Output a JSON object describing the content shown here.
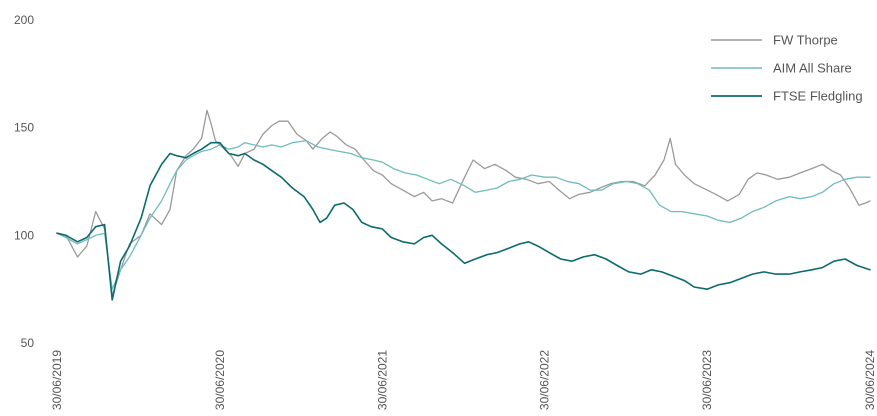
{
  "chart_data": {
    "type": "line",
    "title": "",
    "xlabel": "",
    "ylabel": "",
    "ylim": [
      50,
      200
    ],
    "yticks": [
      "50",
      "100",
      "150",
      "200"
    ],
    "xlim": [
      "30/06/2019",
      "30/06/2024"
    ],
    "xticks": [
      "30/06/2019",
      "30/06/2020",
      "30/06/2021",
      "30/06/2022",
      "30/06/2023",
      "30/06/2024"
    ],
    "grid": false,
    "legend_position": "top-right",
    "series": [
      {
        "name": "FW Thorpe",
        "color": "#9a9a9a",
        "stroke_width": 1.3,
        "points": [
          [
            "2019-06-30",
            101
          ],
          [
            "2019-07-20",
            100
          ],
          [
            "2019-08-15",
            90
          ],
          [
            "2019-09-05",
            95
          ],
          [
            "2019-09-25",
            111
          ],
          [
            "2019-10-15",
            103
          ],
          [
            "2019-11-01",
            72
          ],
          [
            "2019-11-20",
            84
          ],
          [
            "2019-12-10",
            96
          ],
          [
            "2020-01-05",
            100
          ],
          [
            "2020-01-25",
            110
          ],
          [
            "2020-02-20",
            105
          ],
          [
            "2020-03-10",
            112
          ],
          [
            "2020-03-25",
            130
          ],
          [
            "2020-04-15",
            137
          ],
          [
            "2020-05-01",
            140
          ],
          [
            "2020-05-20",
            145
          ],
          [
            "2020-06-01",
            158
          ],
          [
            "2020-06-10",
            152
          ],
          [
            "2020-06-20",
            144
          ],
          [
            "2020-07-10",
            140
          ],
          [
            "2020-07-25",
            137
          ],
          [
            "2020-08-10",
            132
          ],
          [
            "2020-08-25",
            138
          ],
          [
            "2020-09-15",
            140
          ],
          [
            "2020-10-05",
            147
          ],
          [
            "2020-10-25",
            151
          ],
          [
            "2020-11-10",
            153
          ],
          [
            "2020-11-30",
            153
          ],
          [
            "2020-12-20",
            147
          ],
          [
            "2021-01-10",
            144
          ],
          [
            "2021-01-25",
            140
          ],
          [
            "2021-02-15",
            145
          ],
          [
            "2021-03-05",
            148
          ],
          [
            "2021-03-20",
            146
          ],
          [
            "2021-04-10",
            142
          ],
          [
            "2021-04-30",
            140
          ],
          [
            "2021-05-20",
            135
          ],
          [
            "2021-06-10",
            130
          ],
          [
            "2021-06-30",
            128
          ],
          [
            "2021-07-20",
            124
          ],
          [
            "2021-08-15",
            121
          ],
          [
            "2021-09-10",
            118
          ],
          [
            "2021-10-01",
            120
          ],
          [
            "2021-10-20",
            116
          ],
          [
            "2021-11-10",
            117
          ],
          [
            "2021-12-05",
            115
          ],
          [
            "2022-01-01",
            127
          ],
          [
            "2022-01-20",
            135
          ],
          [
            "2022-02-15",
            131
          ],
          [
            "2022-03-10",
            133
          ],
          [
            "2022-04-05",
            130
          ],
          [
            "2022-04-25",
            127
          ],
          [
            "2022-05-20",
            126
          ],
          [
            "2022-06-15",
            124
          ],
          [
            "2022-07-10",
            125
          ],
          [
            "2022-08-01",
            121
          ],
          [
            "2022-08-25",
            117
          ],
          [
            "2022-09-15",
            119
          ],
          [
            "2022-10-10",
            120
          ],
          [
            "2022-11-01",
            122
          ],
          [
            "2022-11-25",
            124
          ],
          [
            "2022-12-20",
            125
          ],
          [
            "2023-01-15",
            125
          ],
          [
            "2023-02-10",
            123
          ],
          [
            "2023-03-05",
            128
          ],
          [
            "2023-03-25",
            135
          ],
          [
            "2023-04-08",
            145
          ],
          [
            "2023-04-20",
            133
          ],
          [
            "2023-05-10",
            128
          ],
          [
            "2023-06-01",
            124
          ],
          [
            "2023-06-30",
            121
          ],
          [
            "2023-07-20",
            119
          ],
          [
            "2023-08-15",
            116
          ],
          [
            "2023-09-10",
            119
          ],
          [
            "2023-09-30",
            126
          ],
          [
            "2023-10-20",
            129
          ],
          [
            "2023-11-10",
            128
          ],
          [
            "2023-12-05",
            126
          ],
          [
            "2024-01-01",
            127
          ],
          [
            "2024-01-25",
            129
          ],
          [
            "2024-02-20",
            131
          ],
          [
            "2024-03-15",
            133
          ],
          [
            "2024-04-05",
            130
          ],
          [
            "2024-04-25",
            128
          ],
          [
            "2024-05-15",
            122
          ],
          [
            "2024-06-05",
            114
          ],
          [
            "2024-06-20",
            115
          ],
          [
            "2024-06-30",
            116
          ]
        ]
      },
      {
        "name": "AIM All Share",
        "color": "#6fbcbf",
        "stroke_width": 1.3,
        "points": [
          [
            "2019-06-30",
            101
          ],
          [
            "2019-07-20",
            99
          ],
          [
            "2019-08-15",
            96
          ],
          [
            "2019-09-05",
            98
          ],
          [
            "2019-09-25",
            100
          ],
          [
            "2019-10-15",
            101
          ],
          [
            "2019-11-01",
            75
          ],
          [
            "2019-11-20",
            84
          ],
          [
            "2019-12-10",
            90
          ],
          [
            "2020-01-05",
            100
          ],
          [
            "2020-01-25",
            108
          ],
          [
            "2020-02-20",
            116
          ],
          [
            "2020-03-10",
            124
          ],
          [
            "2020-03-25",
            130
          ],
          [
            "2020-04-15",
            135
          ],
          [
            "2020-05-01",
            137
          ],
          [
            "2020-05-20",
            139
          ],
          [
            "2020-06-10",
            140
          ],
          [
            "2020-06-30",
            142
          ],
          [
            "2020-07-20",
            140
          ],
          [
            "2020-08-10",
            141
          ],
          [
            "2020-08-25",
            143
          ],
          [
            "2020-09-15",
            142
          ],
          [
            "2020-10-05",
            141
          ],
          [
            "2020-10-25",
            142
          ],
          [
            "2020-11-15",
            141
          ],
          [
            "2020-12-10",
            143
          ],
          [
            "2021-01-10",
            144
          ],
          [
            "2021-02-05",
            141
          ],
          [
            "2021-03-01",
            140
          ],
          [
            "2021-03-25",
            139
          ],
          [
            "2021-04-20",
            138
          ],
          [
            "2021-05-15",
            136
          ],
          [
            "2021-06-10",
            135
          ],
          [
            "2021-06-30",
            134
          ],
          [
            "2021-07-25",
            131
          ],
          [
            "2021-08-20",
            129
          ],
          [
            "2021-09-15",
            128
          ],
          [
            "2021-10-10",
            126
          ],
          [
            "2021-11-05",
            124
          ],
          [
            "2021-12-01",
            126
          ],
          [
            "2022-01-01",
            123
          ],
          [
            "2022-01-25",
            120
          ],
          [
            "2022-02-20",
            121
          ],
          [
            "2022-03-15",
            122
          ],
          [
            "2022-04-10",
            125
          ],
          [
            "2022-05-05",
            126
          ],
          [
            "2022-06-01",
            128
          ],
          [
            "2022-06-30",
            127
          ],
          [
            "2022-07-25",
            127
          ],
          [
            "2022-08-20",
            125
          ],
          [
            "2022-09-15",
            124
          ],
          [
            "2022-10-10",
            121
          ],
          [
            "2022-11-05",
            121
          ],
          [
            "2022-12-01",
            124
          ],
          [
            "2023-01-01",
            125
          ],
          [
            "2023-01-25",
            124
          ],
          [
            "2023-02-20",
            121
          ],
          [
            "2023-03-15",
            114
          ],
          [
            "2023-04-10",
            111
          ],
          [
            "2023-05-05",
            111
          ],
          [
            "2023-06-01",
            110
          ],
          [
            "2023-06-30",
            109
          ],
          [
            "2023-07-25",
            107
          ],
          [
            "2023-08-20",
            106
          ],
          [
            "2023-09-15",
            108
          ],
          [
            "2023-10-10",
            111
          ],
          [
            "2023-11-05",
            113
          ],
          [
            "2023-12-01",
            116
          ],
          [
            "2024-01-01",
            118
          ],
          [
            "2024-01-25",
            117
          ],
          [
            "2024-02-20",
            118
          ],
          [
            "2024-03-15",
            120
          ],
          [
            "2024-04-10",
            124
          ],
          [
            "2024-05-05",
            126
          ],
          [
            "2024-06-01",
            127
          ],
          [
            "2024-06-30",
            127
          ]
        ]
      },
      {
        "name": "FTSE Fledgling",
        "color": "#0c6b6f",
        "stroke_width": 1.6,
        "points": [
          [
            "2019-06-30",
            101
          ],
          [
            "2019-07-20",
            100
          ],
          [
            "2019-08-15",
            97
          ],
          [
            "2019-09-05",
            99
          ],
          [
            "2019-09-25",
            104
          ],
          [
            "2019-10-15",
            105
          ],
          [
            "2019-11-01",
            70
          ],
          [
            "2019-11-20",
            88
          ],
          [
            "2019-12-10",
            95
          ],
          [
            "2020-01-05",
            108
          ],
          [
            "2020-01-25",
            123
          ],
          [
            "2020-02-20",
            133
          ],
          [
            "2020-03-10",
            138
          ],
          [
            "2020-03-25",
            137
          ],
          [
            "2020-04-15",
            136
          ],
          [
            "2020-05-01",
            138
          ],
          [
            "2020-05-20",
            140
          ],
          [
            "2020-06-10",
            143
          ],
          [
            "2020-06-30",
            143
          ],
          [
            "2020-07-20",
            138
          ],
          [
            "2020-08-10",
            137
          ],
          [
            "2020-08-25",
            138
          ],
          [
            "2020-09-15",
            135
          ],
          [
            "2020-10-05",
            133
          ],
          [
            "2020-10-25",
            130
          ],
          [
            "2020-11-15",
            127
          ],
          [
            "2020-12-10",
            122
          ],
          [
            "2021-01-05",
            118
          ],
          [
            "2021-01-25",
            112
          ],
          [
            "2021-02-10",
            106
          ],
          [
            "2021-02-25",
            108
          ],
          [
            "2021-03-15",
            114
          ],
          [
            "2021-04-05",
            115
          ],
          [
            "2021-04-25",
            112
          ],
          [
            "2021-05-15",
            106
          ],
          [
            "2021-06-05",
            104
          ],
          [
            "2021-06-30",
            103
          ],
          [
            "2021-07-20",
            99
          ],
          [
            "2021-08-15",
            97
          ],
          [
            "2021-09-10",
            96
          ],
          [
            "2021-10-01",
            99
          ],
          [
            "2021-10-20",
            100
          ],
          [
            "2021-11-10",
            96
          ],
          [
            "2021-12-05",
            92
          ],
          [
            "2022-01-01",
            87
          ],
          [
            "2022-01-25",
            89
          ],
          [
            "2022-02-20",
            91
          ],
          [
            "2022-03-15",
            92
          ],
          [
            "2022-04-10",
            94
          ],
          [
            "2022-05-05",
            96
          ],
          [
            "2022-05-25",
            97
          ],
          [
            "2022-06-15",
            95
          ],
          [
            "2022-07-10",
            92
          ],
          [
            "2022-08-05",
            89
          ],
          [
            "2022-08-30",
            88
          ],
          [
            "2022-09-25",
            90
          ],
          [
            "2022-10-20",
            91
          ],
          [
            "2022-11-15",
            89
          ],
          [
            "2022-12-10",
            86
          ],
          [
            "2023-01-05",
            83
          ],
          [
            "2023-02-01",
            82
          ],
          [
            "2023-02-25",
            84
          ],
          [
            "2023-03-20",
            83
          ],
          [
            "2023-04-15",
            81
          ],
          [
            "2023-05-10",
            79
          ],
          [
            "2023-06-01",
            76
          ],
          [
            "2023-06-30",
            75
          ],
          [
            "2023-07-25",
            77
          ],
          [
            "2023-08-20",
            78
          ],
          [
            "2023-09-15",
            80
          ],
          [
            "2023-10-10",
            82
          ],
          [
            "2023-11-05",
            83
          ],
          [
            "2023-12-01",
            82
          ],
          [
            "2024-01-01",
            82
          ],
          [
            "2024-01-25",
            83
          ],
          [
            "2024-02-20",
            84
          ],
          [
            "2024-03-15",
            85
          ],
          [
            "2024-04-10",
            88
          ],
          [
            "2024-05-05",
            89
          ],
          [
            "2024-06-01",
            86
          ],
          [
            "2024-06-30",
            84
          ]
        ]
      }
    ]
  }
}
